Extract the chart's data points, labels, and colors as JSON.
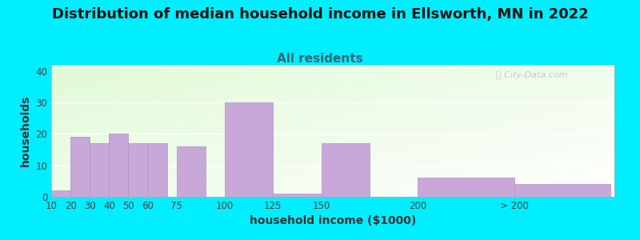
{
  "title": "Distribution of median household income in Ellsworth, MN in 2022",
  "subtitle": "All residents",
  "xlabel": "household income ($1000)",
  "ylabel": "households",
  "background_outer": "#00eeff",
  "bar_color": "#c8a8d8",
  "bar_edgecolor": "#b090c0",
  "yticks": [
    0,
    10,
    20,
    30,
    40
  ],
  "ylim": [
    0,
    42
  ],
  "categories": [
    "10",
    "20",
    "30",
    "40",
    "50",
    "60",
    "75",
    "100",
    "125",
    "150",
    "200",
    "> 200"
  ],
  "values": [
    2,
    19,
    17,
    20,
    17,
    17,
    16,
    30,
    1,
    17,
    6,
    4
  ],
  "bar_widths": [
    10,
    10,
    10,
    10,
    10,
    10,
    15,
    25,
    25,
    25,
    50,
    50
  ],
  "bar_lefts": [
    10,
    20,
    30,
    40,
    50,
    60,
    75,
    100,
    125,
    150,
    200,
    250
  ],
  "xlim_left": 10,
  "xlim_right": 302,
  "title_fontsize": 13,
  "subtitle_fontsize": 11,
  "axis_label_fontsize": 10,
  "tick_fontsize": 8.5,
  "subtitle_color": "#336677",
  "title_color": "#111111"
}
